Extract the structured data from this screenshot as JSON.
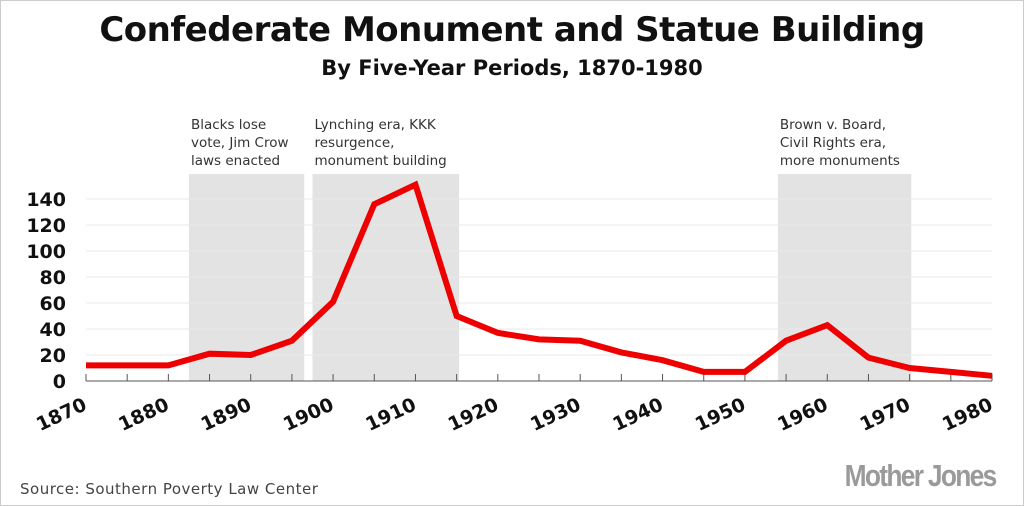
{
  "chart_data": {
    "type": "line",
    "title": "Confederate Monument and Statue Building",
    "subtitle": "By Five-Year Periods, 1870-1980",
    "x": [
      1870,
      1875,
      1880,
      1885,
      1890,
      1895,
      1900,
      1905,
      1910,
      1915,
      1920,
      1925,
      1930,
      1935,
      1940,
      1945,
      1950,
      1955,
      1960,
      1965,
      1970,
      1975,
      1980
    ],
    "series": [
      {
        "values": [
          12,
          12,
          12,
          21,
          20,
          31,
          61,
          136,
          151,
          50,
          37,
          32,
          31,
          22,
          16,
          7,
          7,
          31,
          43,
          18,
          10,
          7,
          4
        ],
        "color": "#ee0000"
      }
    ],
    "xlim": [
      1870,
      1980
    ],
    "ylim": [
      0,
      150
    ],
    "xticks": [
      "1870",
      "1880",
      "1890",
      "1900",
      "1910",
      "1920",
      "1930",
      "1940",
      "1950",
      "1960",
      "1970",
      "1980"
    ],
    "yticks": [
      "0",
      "20",
      "40",
      "60",
      "80",
      "100",
      "120",
      "140"
    ],
    "grid": true,
    "shaded_periods": [
      {
        "start": 1882.5,
        "end": 1896.5,
        "label": [
          "Blacks lose",
          "vote, Jim Crow",
          "laws enacted"
        ]
      },
      {
        "start": 1897.5,
        "end": 1915.3,
        "label": [
          "Lynching era, KKK",
          "resurgence,",
          "monument building"
        ]
      },
      {
        "start": 1954,
        "end": 1970.2,
        "label": [
          "Brown v. Board,",
          "Civil Rights era,",
          "more monuments"
        ]
      }
    ],
    "shade_color": "#e3e3e3",
    "source": "Source: Southern Poverty Law Center"
  },
  "logo": "Mother Jones"
}
